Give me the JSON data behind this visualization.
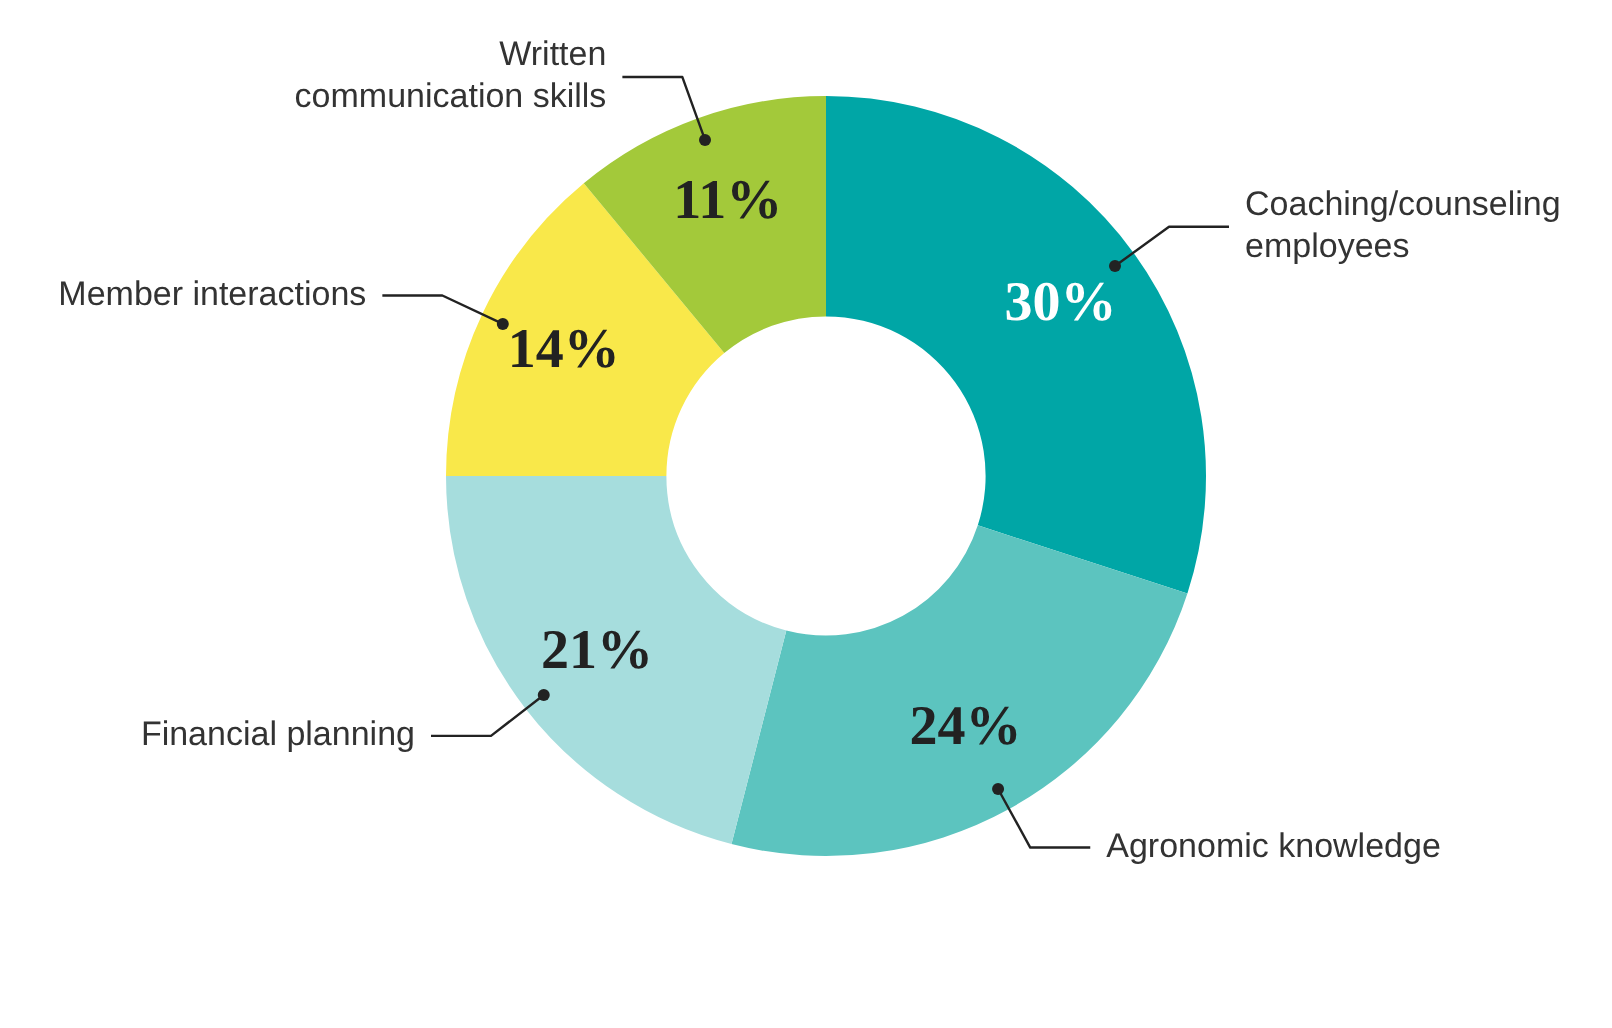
{
  "chart_data": {
    "type": "donut",
    "categories": [
      "Coaching/counseling employees",
      "Agronomic knowledge",
      "Financial planning",
      "Member interactions",
      "Written communication skills"
    ],
    "values": [
      30,
      24,
      21,
      14,
      11
    ],
    "colors": [
      "#00a6a6",
      "#5cc4bf",
      "#a6dddd",
      "#f9e84a",
      "#a3c93a"
    ],
    "value_labels": [
      "30%",
      "24%",
      "21%",
      "14%",
      "11%"
    ],
    "legend": false
  }
}
